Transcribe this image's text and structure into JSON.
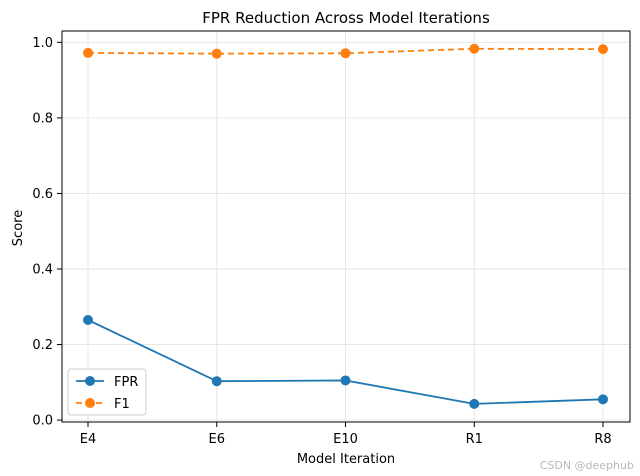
{
  "chart_data": {
    "type": "line",
    "title": "FPR Reduction Across Model Iterations",
    "xlabel": "Model Iteration",
    "ylabel": "Score",
    "categories": [
      "E4",
      "E6",
      "E10",
      "R1",
      "R8"
    ],
    "ylim": [
      -0.005,
      1.03
    ],
    "yticks": [
      "0.0",
      "0.2",
      "0.4",
      "0.6",
      "0.8",
      "1.0"
    ],
    "ytick_values": [
      0.0,
      0.2,
      0.4,
      0.6,
      0.8,
      1.0
    ],
    "grid": true,
    "legend_position": "lower-left",
    "series": [
      {
        "name": "FPR",
        "values": [
          0.265,
          0.103,
          0.105,
          0.043,
          0.055
        ],
        "color": "#1f77b4",
        "style": "solid"
      },
      {
        "name": "F1",
        "values": [
          0.972,
          0.97,
          0.971,
          0.983,
          0.982
        ],
        "color": "#ff7f0e",
        "style": "dashed"
      }
    ]
  },
  "watermark": "CSDN @deephub"
}
